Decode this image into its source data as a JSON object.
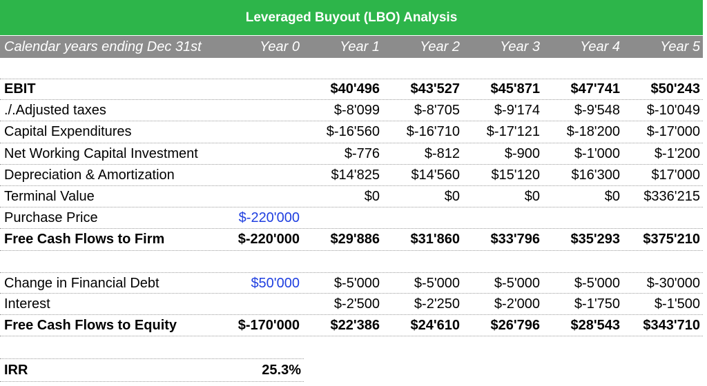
{
  "title": "Leveraged Buyout (LBO) Analysis",
  "header": {
    "label": "Calendar years ending Dec 31st",
    "years": [
      "Year 0",
      "Year 1",
      "Year 2",
      "Year 3",
      "Year 4",
      "Year 5"
    ]
  },
  "rows": {
    "ebit": {
      "label": "EBIT",
      "v": [
        "",
        "$40'496",
        "$43'527",
        "$45'871",
        "$47'741",
        "$50'243"
      ]
    },
    "taxes": {
      "label": "./.Adjusted taxes",
      "v": [
        "",
        "$-8'099",
        "$-8'705",
        "$-9'174",
        "$-9'548",
        "$-10'049"
      ]
    },
    "capex": {
      "label": "Capital Expenditures",
      "v": [
        "",
        "$-16'560",
        "$-16'710",
        "$-17'121",
        "$-18'200",
        "$-17'000"
      ]
    },
    "nwc": {
      "label": "Net Working Capital Investment",
      "v": [
        "",
        "$-776",
        "$-812",
        "$-900",
        "$-1'000",
        "$-1'200"
      ]
    },
    "da": {
      "label": "Depreciation & Amortization",
      "v": [
        "",
        "$14'825",
        "$14'560",
        "$15'120",
        "$16'300",
        "$17'000"
      ]
    },
    "tv": {
      "label": "Terminal Value",
      "v": [
        "",
        "$0",
        "$0",
        "$0",
        "$0",
        "$336'215"
      ]
    },
    "price": {
      "label": "Purchase Price",
      "v": [
        "$-220'000",
        "",
        "",
        "",
        "",
        ""
      ]
    },
    "fcff": {
      "label": "Free Cash Flows to Firm",
      "v": [
        "$-220'000",
        "$29'886",
        "$31'860",
        "$33'796",
        "$35'293",
        "$375'210"
      ]
    },
    "debt": {
      "label": "Change in Financial Debt",
      "v": [
        "$50'000",
        "$-5'000",
        "$-5'000",
        "$-5'000",
        "$-5'000",
        "$-30'000"
      ]
    },
    "interest": {
      "label": "Interest",
      "v": [
        "",
        "$-2'500",
        "$-2'250",
        "$-2'000",
        "$-1'750",
        "$-1'500"
      ]
    },
    "fcfe": {
      "label": "Free Cash Flows to Equity",
      "v": [
        "$-170'000",
        "$22'386",
        "$24'610",
        "$26'796",
        "$28'543",
        "$343'710"
      ]
    }
  },
  "irr": {
    "label": "IRR",
    "value": "25.3%"
  },
  "colors": {
    "title_bg": "#2db54a",
    "header_bg": "#8c8c8c",
    "input_blue": "#1f3fe0"
  }
}
